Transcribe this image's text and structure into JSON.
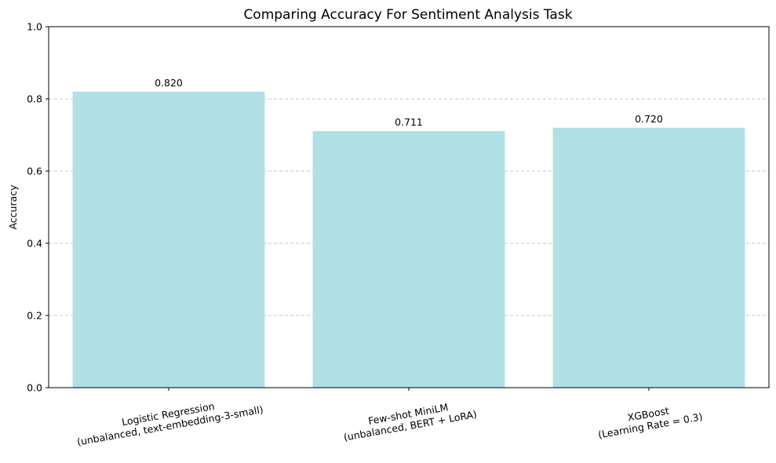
{
  "chart_data": {
    "type": "bar",
    "title": "Comparing Accuracy For Sentiment Analysis Task",
    "xlabel": "",
    "ylabel": "Accuracy",
    "ylim": [
      0,
      1.0
    ],
    "yticks": [
      "0.0",
      "0.2",
      "0.4",
      "0.6",
      "0.8",
      "1.0"
    ],
    "categories": [
      [
        "Logistic Regression",
        "(unbalanced, text-embedding-3-small)"
      ],
      [
        "Few-shot MiniLM",
        "(unbalanced, BERT + LoRA)"
      ],
      [
        "XGBoost",
        "(Learning Rate = 0.3)"
      ]
    ],
    "values": [
      0.82,
      0.711,
      0.72
    ],
    "value_labels": [
      "0.820",
      "0.711",
      "0.720"
    ],
    "bar_color": "#b0dfe5",
    "grid": "y-dashed",
    "x_tick_rotation_deg": -10
  }
}
